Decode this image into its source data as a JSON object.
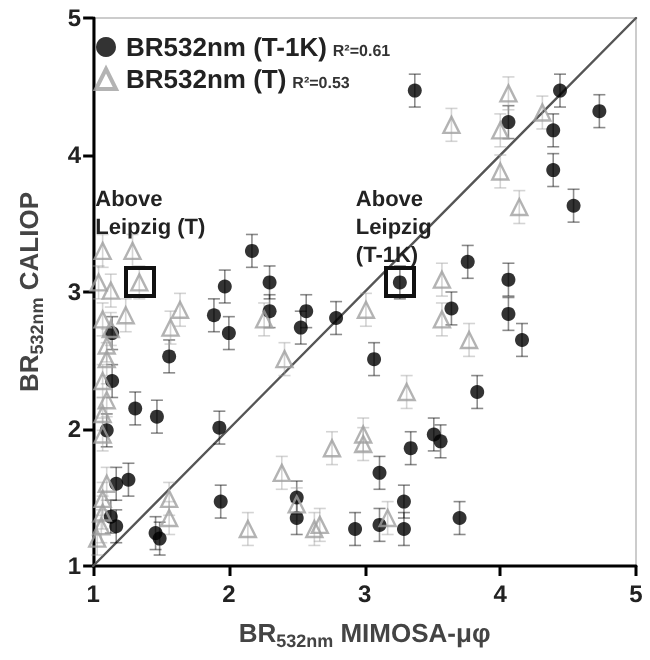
{
  "chart_data": {
    "type": "scatter",
    "xlabel": "BR$_{532nm}$ MIMOSA-μφ",
    "ylabel": "BR$_{532nm}$ CALIOP",
    "xlim": [
      1,
      5
    ],
    "ylim": [
      1,
      5
    ],
    "xticks": [
      1,
      2,
      3,
      4,
      5
    ],
    "yticks": [
      1,
      2,
      3,
      4,
      5
    ],
    "grid": false,
    "legend": "top left",
    "annotations": [
      "R²=0.61",
      "R²=0.53",
      {
        "text": "Above Leipzig (T)",
        "x": 1.34,
        "y": 3.07
      },
      {
        "text": "Above Leipzig (T-1K)",
        "x": 3.26,
        "y": 3.07
      }
    ],
    "series": [
      {
        "name": "BR532nm (T-1K)",
        "color": "#000000",
        "marker": "circle",
        "x": [
          3.37,
          4.44,
          4.73,
          4.06,
          4.39,
          4.39,
          4.54,
          3.76,
          4.06,
          3.26,
          3.64,
          4.06,
          1.97,
          2.3,
          2.17,
          1.89,
          2.0,
          2.3,
          2.57,
          2.53,
          2.79,
          1.56,
          3.07,
          1.31,
          1.47,
          1.93,
          1.26,
          1.94,
          2.5,
          2.5,
          3.11,
          1.46,
          1.49,
          2.93,
          3.11,
          1.17,
          4.16,
          3.83,
          3.51,
          3.56,
          3.34,
          3.29,
          3.29,
          3.7,
          1.14,
          1.14,
          1.1,
          1.17,
          1.13
        ],
        "values": [
          4.47,
          4.47,
          4.32,
          4.24,
          4.18,
          3.89,
          3.63,
          3.22,
          3.09,
          3.07,
          2.88,
          2.84,
          3.04,
          3.07,
          3.3,
          2.83,
          2.7,
          2.86,
          2.86,
          2.74,
          2.81,
          2.53,
          2.51,
          2.15,
          2.09,
          2.01,
          1.63,
          1.47,
          1.5,
          1.35,
          1.68,
          1.24,
          1.2,
          1.27,
          1.3,
          1.29,
          2.65,
          2.27,
          1.96,
          1.91,
          1.86,
          1.47,
          1.27,
          1.35,
          2.7,
          2.35,
          1.99,
          1.6,
          1.36
        ],
        "errors": [
          0.12,
          0.12,
          0.12,
          0.12,
          0.12,
          0.12,
          0.12,
          0.12,
          0.12,
          0.12,
          0.12,
          0.12,
          0.12,
          0.12,
          0.12,
          0.12,
          0.12,
          0.12,
          0.12,
          0.12,
          0.12,
          0.12,
          0.12,
          0.12,
          0.12,
          0.12,
          0.12,
          0.12,
          0.12,
          0.12,
          0.12,
          0.12,
          0.12,
          0.12,
          0.12,
          0.12,
          0.12,
          0.12,
          0.12,
          0.12,
          0.12,
          0.12,
          0.12,
          0.12,
          0.12,
          0.12,
          0.12,
          0.12,
          0.12
        ]
      },
      {
        "name": "BR532nm (T)",
        "color": "#a0a0a0",
        "marker": "triangle",
        "x": [
          3.64,
          4.06,
          4.0,
          4.31,
          4.0,
          4.14,
          3.57,
          1.34,
          1.29,
          1.64,
          1.57,
          2.26,
          3.01,
          2.41,
          1.24,
          2.76,
          2.99,
          2.99,
          2.39,
          1.56,
          1.56,
          2.14,
          2.63,
          2.67,
          2.5,
          3.57,
          3.77,
          3.31,
          3.17,
          1.07,
          1.04,
          1.13,
          1.07,
          1.13,
          1.1,
          1.1,
          1.07,
          1.1,
          1.07,
          1.07,
          1.1,
          1.07,
          1.07,
          1.06,
          1.03
        ],
        "values": [
          4.22,
          4.45,
          4.18,
          4.31,
          3.88,
          3.62,
          3.09,
          3.07,
          3.3,
          2.87,
          2.74,
          2.8,
          2.87,
          2.51,
          2.83,
          1.86,
          1.96,
          1.89,
          1.68,
          1.49,
          1.35,
          1.27,
          1.27,
          1.3,
          1.45,
          2.8,
          2.65,
          2.27,
          1.35,
          3.3,
          3.07,
          3.01,
          2.8,
          2.73,
          2.61,
          2.51,
          2.35,
          2.21,
          2.11,
          1.96,
          1.6,
          1.49,
          1.39,
          1.29,
          1.2
        ],
        "errors": [
          0.12,
          0.12,
          0.12,
          0.12,
          0.12,
          0.12,
          0.12,
          0.12,
          0.12,
          0.12,
          0.12,
          0.12,
          0.12,
          0.12,
          0.12,
          0.12,
          0.12,
          0.12,
          0.12,
          0.12,
          0.12,
          0.12,
          0.12,
          0.12,
          0.12,
          0.12,
          0.12,
          0.12,
          0.12,
          0.12,
          0.12,
          0.12,
          0.12,
          0.12,
          0.12,
          0.12,
          0.12,
          0.12,
          0.12,
          0.12,
          0.12,
          0.12,
          0.12,
          0.12,
          0.12
        ]
      },
      {
        "type": "line",
        "color": "#555555",
        "line_style": "solid",
        "marker": "none",
        "x": [
          1,
          5
        ],
        "values": [
          1,
          5
        ]
      }
    ]
  }
}
